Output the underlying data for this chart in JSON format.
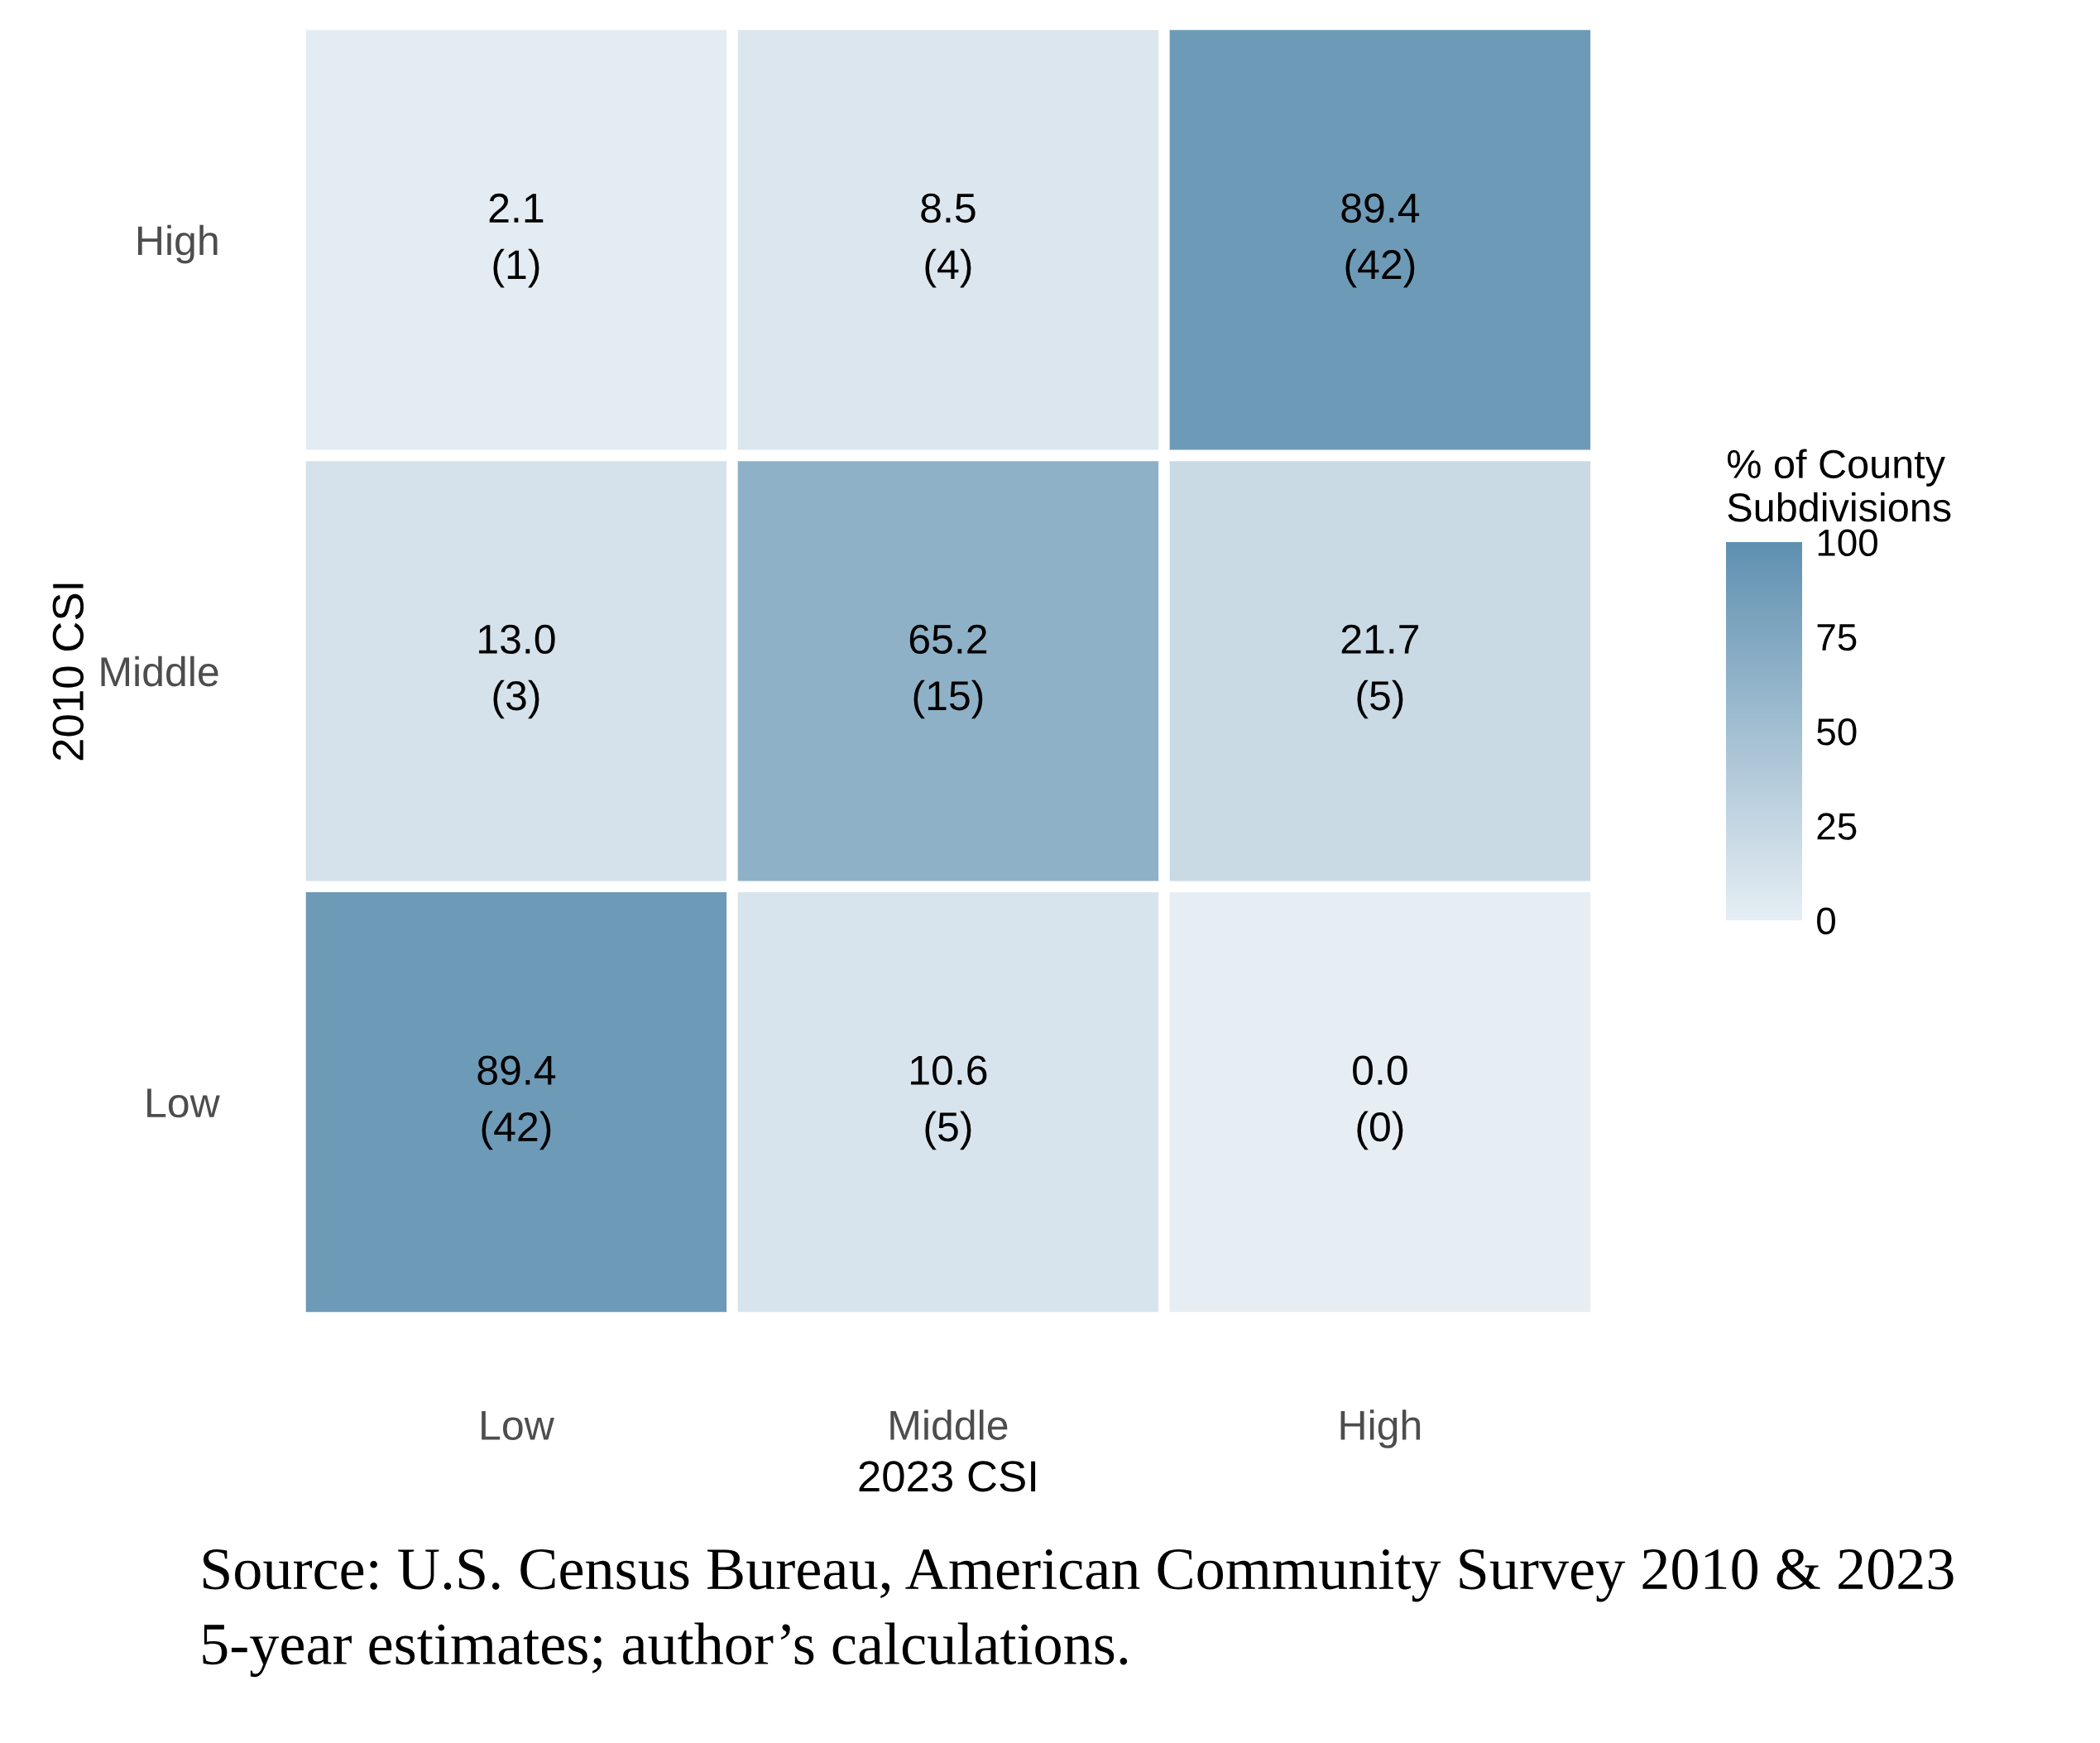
{
  "chart_data": {
    "type": "heatmap",
    "xlabel": "2023 CSI",
    "ylabel": "2010 CSI",
    "clabel": "% of County\nSubdivisions",
    "categories": [
      "Low",
      "Middle",
      "High"
    ],
    "y_categories": [
      "High",
      "Middle",
      "Low"
    ],
    "cells": [
      [
        2.1,
        8.5,
        89.4
      ],
      [
        13.0,
        65.2,
        21.7
      ],
      [
        89.4,
        10.6,
        0.0
      ]
    ],
    "cell_labels": [
      [
        "2.1\n(1)",
        "8.5\n(4)",
        "89.4\n(42)"
      ],
      [
        "13.0\n(3)",
        "65.2\n(15)",
        "21.7\n(5)"
      ],
      [
        "89.4\n(42)",
        "10.6\n(5)",
        "0.0\n(0)"
      ]
    ],
    "colors": [
      "#e6eef4",
      "#5f90b0"
    ],
    "clim": [
      0,
      100
    ],
    "cticks": [
      0,
      25,
      50,
      75,
      100
    ],
    "grid": false,
    "annotations": [
      "Source: U.S. Census Bureau, American Community Survey 2010 & 2023 5-year estimates; author’s calculations."
    ]
  }
}
